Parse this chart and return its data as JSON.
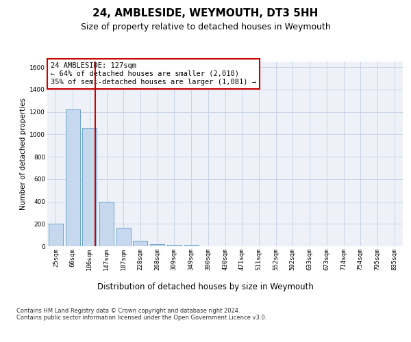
{
  "title": "24, AMBLESIDE, WEYMOUTH, DT3 5HH",
  "subtitle": "Size of property relative to detached houses in Weymouth",
  "xlabel": "Distribution of detached houses by size in Weymouth",
  "ylabel": "Number of detached properties",
  "categories": [
    "25sqm",
    "66sqm",
    "106sqm",
    "147sqm",
    "187sqm",
    "228sqm",
    "268sqm",
    "309sqm",
    "349sqm",
    "390sqm",
    "430sqm",
    "471sqm",
    "511sqm",
    "552sqm",
    "592sqm",
    "633sqm",
    "673sqm",
    "714sqm",
    "754sqm",
    "795sqm",
    "835sqm"
  ],
  "values": [
    200,
    1220,
    1060,
    400,
    165,
    50,
    20,
    12,
    12,
    0,
    0,
    0,
    0,
    0,
    0,
    0,
    0,
    0,
    0,
    0,
    0
  ],
  "bar_color": "#c5d8ed",
  "bar_edge_color": "#5a9bc9",
  "vline_color": "#cc0000",
  "vline_pos": 2.35,
  "annotation_text": "24 AMBLESIDE: 127sqm\n← 64% of detached houses are smaller (2,010)\n35% of semi-detached houses are larger (1,081) →",
  "annotation_box_color": "#ffffff",
  "annotation_box_edge": "#cc0000",
  "ylim": [
    0,
    1650
  ],
  "yticks": [
    0,
    200,
    400,
    600,
    800,
    1000,
    1200,
    1400,
    1600
  ],
  "footer_text": "Contains HM Land Registry data © Crown copyright and database right 2024.\nContains public sector information licensed under the Open Government Licence v3.0.",
  "plot_bg_color": "#eef2f8",
  "grid_color": "#c8d4e8",
  "title_fontsize": 11,
  "subtitle_fontsize": 9,
  "xlabel_fontsize": 8.5,
  "ylabel_fontsize": 7.5,
  "tick_fontsize": 6.5,
  "annotation_fontsize": 7.5,
  "footer_fontsize": 6
}
